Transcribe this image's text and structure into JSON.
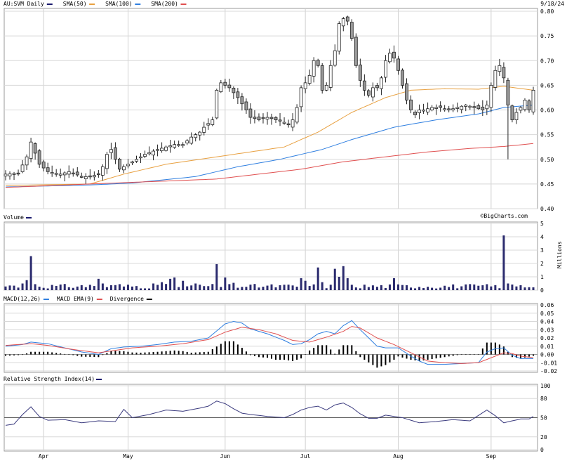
{
  "chart_data": [
    {
      "type": "candlestick",
      "legend": [
        {
          "label": "AU:SVM Daily",
          "color": "#1a1a6e"
        },
        {
          "label": "SMA(50)",
          "color": "#e8a040"
        },
        {
          "label": "SMA(100)",
          "color": "#2f7fe0"
        },
        {
          "label": "SMA(200)",
          "color": "#e05050"
        }
      ],
      "date": "9/18/24",
      "ylim": [
        0.4,
        0.8
      ],
      "yticks": [
        "0.80",
        "0.75",
        "0.70",
        "0.65",
        "0.60",
        "0.55",
        "0.50",
        "0.45",
        "0.40"
      ],
      "watermark": "©BigCharts.com",
      "n_days": 126,
      "month_labels": [
        {
          "label": "Apr",
          "day": 9
        },
        {
          "label": "May",
          "day": 29
        },
        {
          "label": "Jun",
          "day": 52
        },
        {
          "label": "Jul",
          "day": 71
        },
        {
          "label": "Aug",
          "day": 93
        },
        {
          "label": "Sep",
          "day": 115
        }
      ],
      "close_anchors": [
        [
          0,
          0.47
        ],
        [
          3,
          0.472
        ],
        [
          5,
          0.505
        ],
        [
          6,
          0.535
        ],
        [
          8,
          0.49
        ],
        [
          10,
          0.475
        ],
        [
          13,
          0.47
        ],
        [
          15,
          0.475
        ],
        [
          18,
          0.465
        ],
        [
          20,
          0.465
        ],
        [
          22,
          0.47
        ],
        [
          23,
          0.485
        ],
        [
          24,
          0.51
        ],
        [
          25,
          0.52
        ],
        [
          27,
          0.48
        ],
        [
          30,
          0.495
        ],
        [
          33,
          0.51
        ],
        [
          36,
          0.52
        ],
        [
          38,
          0.525
        ],
        [
          40,
          0.53
        ],
        [
          42,
          0.53
        ],
        [
          44,
          0.545
        ],
        [
          46,
          0.555
        ],
        [
          47,
          0.565
        ],
        [
          49,
          0.58
        ],
        [
          50,
          0.64
        ],
        [
          51,
          0.655
        ],
        [
          53,
          0.645
        ],
        [
          55,
          0.625
        ],
        [
          57,
          0.6
        ],
        [
          58,
          0.585
        ],
        [
          60,
          0.58
        ],
        [
          62,
          0.585
        ],
        [
          64,
          0.58
        ],
        [
          66,
          0.575
        ],
        [
          67,
          0.57
        ],
        [
          68,
          0.58
        ],
        [
          69,
          0.605
        ],
        [
          70,
          0.645
        ],
        [
          71,
          0.655
        ],
        [
          72,
          0.67
        ],
        [
          73,
          0.7
        ],
        [
          74,
          0.69
        ],
        [
          75,
          0.64
        ],
        [
          76,
          0.65
        ],
        [
          77,
          0.69
        ],
        [
          78,
          0.72
        ],
        [
          79,
          0.775
        ],
        [
          80,
          0.785
        ],
        [
          81,
          0.78
        ],
        [
          82,
          0.745
        ],
        [
          83,
          0.69
        ],
        [
          84,
          0.66
        ],
        [
          85,
          0.64
        ],
        [
          86,
          0.63
        ],
        [
          87,
          0.645
        ],
        [
          88,
          0.645
        ],
        [
          89,
          0.665
        ],
        [
          90,
          0.7
        ],
        [
          91,
          0.715
        ],
        [
          92,
          0.705
        ],
        [
          93,
          0.68
        ],
        [
          94,
          0.65
        ],
        [
          95,
          0.62
        ],
        [
          96,
          0.6
        ],
        [
          97,
          0.59
        ],
        [
          98,
          0.6
        ],
        [
          99,
          0.6
        ],
        [
          101,
          0.605
        ],
        [
          103,
          0.605
        ],
        [
          105,
          0.6
        ],
        [
          107,
          0.605
        ],
        [
          109,
          0.61
        ],
        [
          111,
          0.605
        ],
        [
          113,
          0.6
        ],
        [
          114,
          0.61
        ],
        [
          115,
          0.65
        ],
        [
          116,
          0.68
        ],
        [
          117,
          0.69
        ],
        [
          118,
          0.665
        ],
        [
          119,
          0.61
        ],
        [
          120,
          0.58
        ],
        [
          121,
          0.595
        ],
        [
          122,
          0.605
        ],
        [
          123,
          0.62
        ],
        [
          124,
          0.6
        ],
        [
          125,
          0.64
        ]
      ],
      "sma50_anchors": [
        [
          0,
          0.447
        ],
        [
          20,
          0.45
        ],
        [
          28,
          0.47
        ],
        [
          38,
          0.49
        ],
        [
          50,
          0.505
        ],
        [
          58,
          0.515
        ],
        [
          66,
          0.525
        ],
        [
          74,
          0.555
        ],
        [
          82,
          0.595
        ],
        [
          90,
          0.625
        ],
        [
          96,
          0.64
        ],
        [
          104,
          0.643
        ],
        [
          112,
          0.642
        ],
        [
          118,
          0.648
        ],
        [
          125,
          0.64
        ]
      ],
      "sma100_anchors": [
        [
          0,
          0.444
        ],
        [
          20,
          0.448
        ],
        [
          30,
          0.452
        ],
        [
          45,
          0.465
        ],
        [
          55,
          0.485
        ],
        [
          65,
          0.5
        ],
        [
          75,
          0.52
        ],
        [
          82,
          0.54
        ],
        [
          92,
          0.565
        ],
        [
          102,
          0.58
        ],
        [
          112,
          0.592
        ],
        [
          118,
          0.605
        ],
        [
          125,
          0.61
        ]
      ],
      "sma200_anchors": [
        [
          0,
          0.443
        ],
        [
          20,
          0.45
        ],
        [
          35,
          0.455
        ],
        [
          50,
          0.46
        ],
        [
          60,
          0.47
        ],
        [
          70,
          0.48
        ],
        [
          80,
          0.495
        ],
        [
          90,
          0.505
        ],
        [
          100,
          0.515
        ],
        [
          110,
          0.522
        ],
        [
          118,
          0.526
        ],
        [
          125,
          0.532
        ]
      ],
      "outlier_low": {
        "day": 119,
        "value": 0.5
      }
    },
    {
      "type": "bar",
      "title": "Volume",
      "ylim": [
        0,
        5
      ],
      "yticks": [
        "5",
        "4",
        "3",
        "2",
        "1",
        "0"
      ],
      "ylabel": "Millions",
      "spikes": [
        [
          1,
          0.35
        ],
        [
          4,
          0.5
        ],
        [
          5,
          0.75
        ],
        [
          6,
          2.55
        ],
        [
          7,
          0.45
        ],
        [
          20,
          0.4
        ],
        [
          22,
          0.85
        ],
        [
          23,
          0.5
        ],
        [
          27,
          0.45
        ],
        [
          35,
          0.5
        ],
        [
          37,
          0.6
        ],
        [
          39,
          0.85
        ],
        [
          40,
          0.95
        ],
        [
          42,
          0.7
        ],
        [
          45,
          0.5
        ],
        [
          50,
          1.95
        ],
        [
          52,
          0.95
        ],
        [
          54,
          0.55
        ],
        [
          70,
          0.9
        ],
        [
          71,
          0.7
        ],
        [
          74,
          1.7
        ],
        [
          75,
          0.6
        ],
        [
          78,
          1.6
        ],
        [
          79,
          1.0
        ],
        [
          80,
          1.8
        ],
        [
          81,
          0.9
        ],
        [
          92,
          0.9
        ],
        [
          118,
          4.1
        ],
        [
          119,
          0.5
        ]
      ]
    },
    {
      "type": "line",
      "title": "MACD(12,26)",
      "legend": [
        {
          "label": "MACD(12,26)",
          "color": "#2f7fe0"
        },
        {
          "label": "MACD EMA(9)",
          "color": "#e05050"
        },
        {
          "label": "Divergence",
          "color": "#000000"
        }
      ],
      "ylim": [
        -0.02,
        0.06
      ],
      "yticks": [
        "0.06",
        "0.05",
        "0.04",
        "0.03",
        "0.02",
        "0.01",
        "0.00",
        "-0.01",
        "-0.02"
      ],
      "macd_anchors": [
        [
          0,
          0.01
        ],
        [
          4,
          0.012
        ],
        [
          6,
          0.015
        ],
        [
          10,
          0.013
        ],
        [
          14,
          0.008
        ],
        [
          18,
          0.003
        ],
        [
          22,
          0.0
        ],
        [
          25,
          0.007
        ],
        [
          28,
          0.009
        ],
        [
          32,
          0.01
        ],
        [
          36,
          0.012
        ],
        [
          40,
          0.015
        ],
        [
          44,
          0.016
        ],
        [
          48,
          0.02
        ],
        [
          52,
          0.037
        ],
        [
          54,
          0.04
        ],
        [
          56,
          0.038
        ],
        [
          58,
          0.031
        ],
        [
          62,
          0.025
        ],
        [
          66,
          0.017
        ],
        [
          68,
          0.012
        ],
        [
          70,
          0.013
        ],
        [
          72,
          0.018
        ],
        [
          74,
          0.025
        ],
        [
          76,
          0.028
        ],
        [
          78,
          0.025
        ],
        [
          80,
          0.035
        ],
        [
          82,
          0.041
        ],
        [
          84,
          0.03
        ],
        [
          86,
          0.02
        ],
        [
          88,
          0.01
        ],
        [
          90,
          0.008
        ],
        [
          93,
          0.008
        ],
        [
          96,
          -0.002
        ],
        [
          98,
          -0.008
        ],
        [
          100,
          -0.012
        ],
        [
          104,
          -0.012
        ],
        [
          108,
          -0.011
        ],
        [
          112,
          -0.01
        ],
        [
          114,
          0.003
        ],
        [
          116,
          0.007
        ],
        [
          118,
          0.008
        ],
        [
          120,
          -0.001
        ],
        [
          122,
          -0.005
        ],
        [
          125,
          -0.005
        ]
      ],
      "ema_anchors": [
        [
          0,
          0.011
        ],
        [
          6,
          0.013
        ],
        [
          10,
          0.011
        ],
        [
          16,
          0.006
        ],
        [
          22,
          0.002
        ],
        [
          26,
          0.005
        ],
        [
          30,
          0.008
        ],
        [
          36,
          0.01
        ],
        [
          42,
          0.013
        ],
        [
          48,
          0.018
        ],
        [
          52,
          0.027
        ],
        [
          56,
          0.033
        ],
        [
          60,
          0.03
        ],
        [
          64,
          0.025
        ],
        [
          68,
          0.017
        ],
        [
          72,
          0.015
        ],
        [
          76,
          0.021
        ],
        [
          80,
          0.028
        ],
        [
          82,
          0.034
        ],
        [
          84,
          0.032
        ],
        [
          88,
          0.02
        ],
        [
          92,
          0.012
        ],
        [
          96,
          0.002
        ],
        [
          100,
          -0.008
        ],
        [
          104,
          -0.01
        ],
        [
          108,
          -0.011
        ],
        [
          112,
          -0.01
        ],
        [
          114,
          -0.006
        ],
        [
          118,
          0.002
        ],
        [
          120,
          0.001
        ],
        [
          122,
          -0.002
        ],
        [
          125,
          -0.004
        ]
      ]
    },
    {
      "type": "line",
      "title": "Relative Strength Index(14)",
      "ylim": [
        0,
        100
      ],
      "yticks": [
        "100",
        "80",
        "50",
        "20",
        "0"
      ],
      "reference_line": 50,
      "rsi_anchors": [
        [
          0,
          38
        ],
        [
          2,
          40
        ],
        [
          4,
          55
        ],
        [
          6,
          67
        ],
        [
          8,
          52
        ],
        [
          10,
          46
        ],
        [
          14,
          47
        ],
        [
          18,
          42
        ],
        [
          22,
          45
        ],
        [
          26,
          44
        ],
        [
          28,
          63
        ],
        [
          30,
          50
        ],
        [
          34,
          55
        ],
        [
          38,
          62
        ],
        [
          42,
          60
        ],
        [
          46,
          65
        ],
        [
          48,
          68
        ],
        [
          50,
          76
        ],
        [
          52,
          72
        ],
        [
          54,
          64
        ],
        [
          56,
          57
        ],
        [
          58,
          55
        ],
        [
          62,
          52
        ],
        [
          66,
          50
        ],
        [
          68,
          55
        ],
        [
          70,
          62
        ],
        [
          72,
          66
        ],
        [
          74,
          68
        ],
        [
          76,
          62
        ],
        [
          78,
          70
        ],
        [
          80,
          73
        ],
        [
          82,
          66
        ],
        [
          84,
          56
        ],
        [
          86,
          49
        ],
        [
          88,
          49
        ],
        [
          90,
          54
        ],
        [
          92,
          52
        ],
        [
          94,
          50
        ],
        [
          96,
          46
        ],
        [
          98,
          42
        ],
        [
          102,
          44
        ],
        [
          106,
          47
        ],
        [
          110,
          45
        ],
        [
          114,
          62
        ],
        [
          116,
          53
        ],
        [
          118,
          42
        ],
        [
          120,
          45
        ],
        [
          122,
          48
        ],
        [
          124,
          48
        ],
        [
          125,
          52
        ]
      ]
    }
  ]
}
